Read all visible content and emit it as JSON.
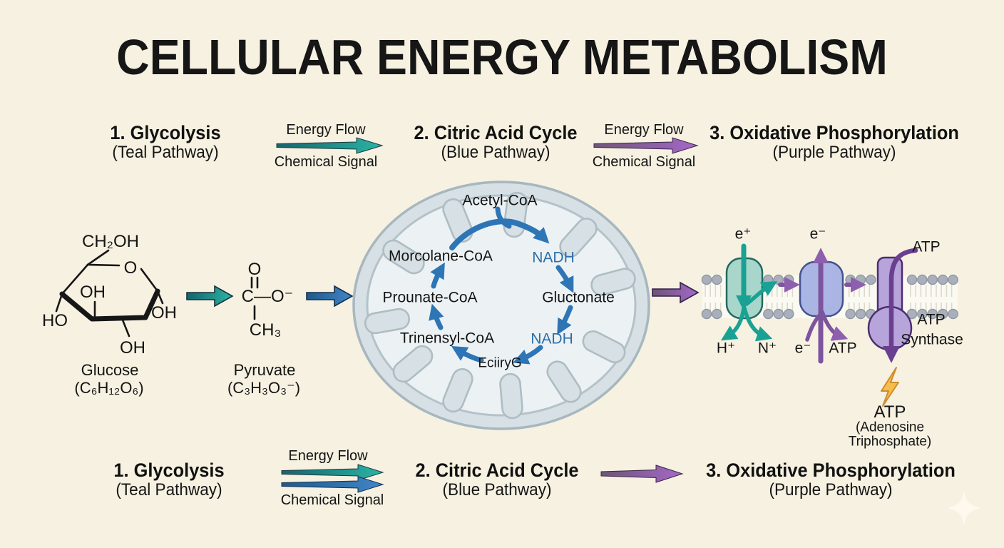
{
  "header": {
    "title": "CELLULAR ENERGY METABOLISM"
  },
  "legend": {
    "energy_flow": "Energy Flow",
    "chemical_signal": "Chemical Signal"
  },
  "stages": [
    {
      "name": "1. Glycolysis",
      "pathway": "(Teal Pathway)"
    },
    {
      "name": "2. Citric Acid Cycle",
      "pathway": "(Blue Pathway)"
    },
    {
      "name": "3. Oxidative Phosphorylation",
      "pathway": "(Purple Pathway)"
    }
  ],
  "glycolysis": {
    "glucose": {
      "name": "Glucose",
      "formula": "(C₆H₁₂O₆)",
      "ch2oh": "CH₂OH",
      "ring_oxygen": "O",
      "oh_inner": "OH",
      "ho_left": "HO",
      "oh_right": "OH",
      "oh_bottom": "OH"
    },
    "pyruvate": {
      "name": "Pyruvate",
      "formula": "(C₃H₃O₃⁻)",
      "carbonyl_o": "O",
      "carboxyl": "C—O⁻",
      "methyl": "CH₃"
    }
  },
  "citric_acid_cycle": {
    "acetyl_coa": "Acetyl-CoA",
    "nadh_upper": "NADH",
    "morcolane_coa": "Morcolane-CoA",
    "gluctonate": "Gluctonate",
    "prounate_coa": "Prounate-CoA",
    "nadh_lower": "NADH",
    "trinensyl_coa": "Trinensyl-CoA",
    "eciiryg": "EciiryG"
  },
  "oxidative_phosphorylation": {
    "e_plus": "e⁺",
    "e_minus_upper": "e⁻",
    "h_plus": "H⁺",
    "n_plus": "N⁺",
    "e_minus_lower": "e⁻",
    "atp_complex2": "ATP",
    "atp_synthase_in": "ATP",
    "synthase_label_1": "ATP",
    "synthase_label_2": "Synthase",
    "atp_product": "ATP",
    "atp_product_sub1": "(Adenosine",
    "atp_product_sub2": "Triphosphate)"
  },
  "colors": {
    "background": "#f6f1e1",
    "teal": "#1e9e8e",
    "blue": "#2e75b6",
    "purple": "#8e5fae",
    "nadh_text": "#2d6ea8",
    "bolt": "#f6bb4a"
  }
}
